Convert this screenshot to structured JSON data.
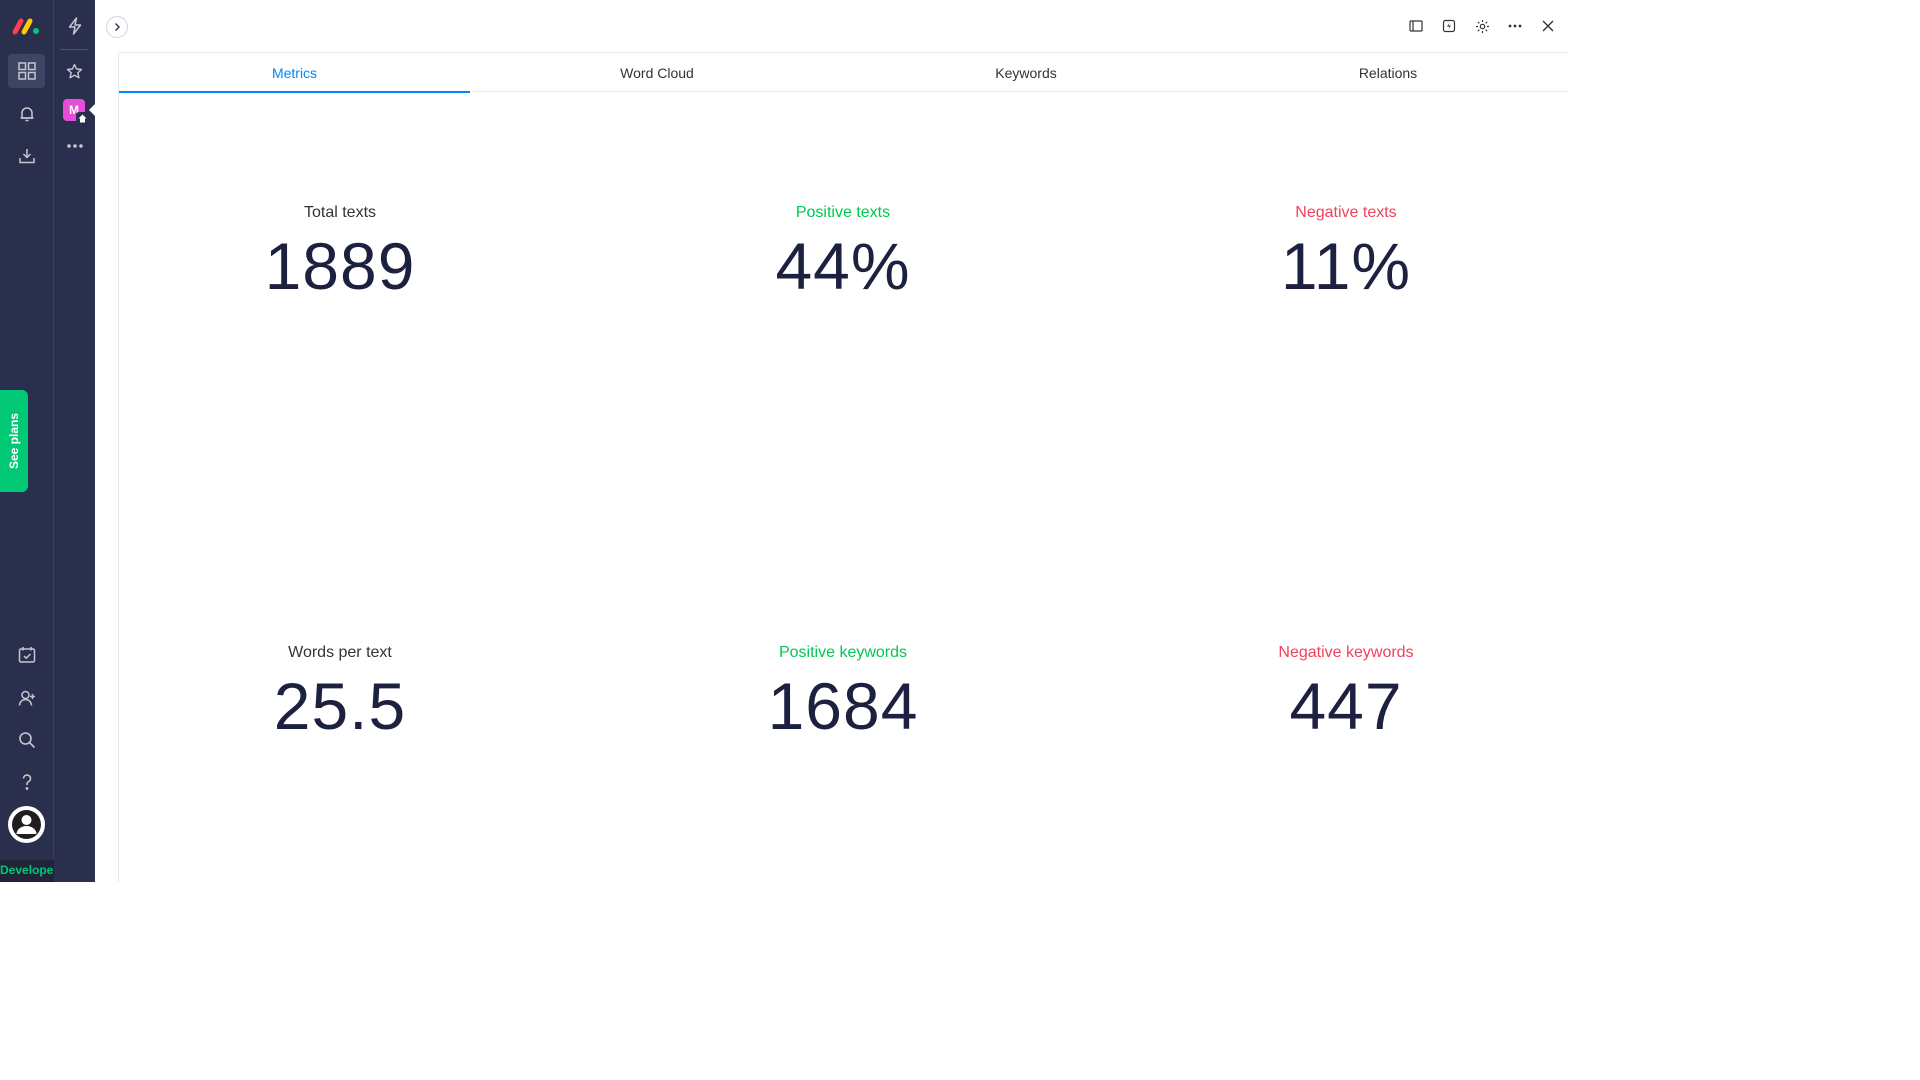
{
  "sidebar": {
    "badge_letter": "M",
    "see_plans_label": "See plans",
    "developer_label": "Developer"
  },
  "tabs": [
    {
      "label": "Metrics",
      "active": true
    },
    {
      "label": "Word Cloud",
      "active": false
    },
    {
      "label": "Keywords",
      "active": false
    },
    {
      "label": "Relations",
      "active": false
    }
  ],
  "metrics": {
    "total_texts": {
      "label": "Total texts",
      "value": "1889"
    },
    "positive_texts": {
      "label": "Positive texts",
      "value": "44%"
    },
    "negative_texts": {
      "label": "Negative texts",
      "value": "11%"
    },
    "words_per_text": {
      "label": "Words per text",
      "value": "25.5"
    },
    "positive_keywords": {
      "label": "Positive keywords",
      "value": "1684"
    },
    "negative_keywords": {
      "label": "Negative keywords",
      "value": "447"
    }
  },
  "colors": {
    "accent": "#0085ff",
    "positive": "#00c853",
    "negative": "#f2415a",
    "sidebar": "#292f4c",
    "brand_green": "#00c875"
  }
}
